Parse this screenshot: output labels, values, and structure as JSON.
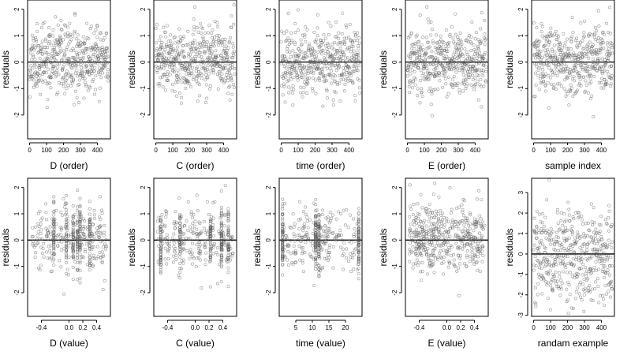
{
  "chart_data": [
    {
      "type": "scatter",
      "xlabel": "D (order)",
      "ylabel": "residuals",
      "x_range": [
        0,
        465
      ],
      "xlim": [
        -12,
        477
      ],
      "ylim": [
        -2.9,
        2.35
      ],
      "x_ticks": [
        0,
        100,
        200,
        300,
        400
      ],
      "x_tick_labels": [
        "0",
        "100",
        "200",
        "300",
        "400"
      ],
      "y_ticks": [
        -2,
        -1,
        0,
        1,
        2
      ],
      "y_tick_labels": [
        "-2",
        "-1",
        "0",
        "1",
        "2"
      ],
      "reference_line": 0,
      "n_points": 465,
      "mode": "order",
      "seed": 11,
      "grid": false
    },
    {
      "type": "scatter",
      "xlabel": "C (order)",
      "ylabel": "residuals",
      "x_range": [
        0,
        465
      ],
      "xlim": [
        -12,
        477
      ],
      "ylim": [
        -2.9,
        2.35
      ],
      "x_ticks": [
        0,
        100,
        200,
        300,
        400
      ],
      "x_tick_labels": [
        "0",
        "100",
        "200",
        "300",
        "400"
      ],
      "y_ticks": [
        -2,
        -1,
        0,
        1,
        2
      ],
      "y_tick_labels": [
        "-2",
        "-1",
        "0",
        "1",
        "2"
      ],
      "reference_line": 0,
      "n_points": 465,
      "mode": "order",
      "seed": 23,
      "grid": false
    },
    {
      "type": "scatter",
      "xlabel": "time (order)",
      "ylabel": "residuals",
      "x_range": [
        0,
        465
      ],
      "xlim": [
        -12,
        477
      ],
      "ylim": [
        -2.9,
        2.35
      ],
      "x_ticks": [
        0,
        100,
        200,
        300,
        400
      ],
      "x_tick_labels": [
        "0",
        "100",
        "200",
        "300",
        "400"
      ],
      "y_ticks": [
        -2,
        -1,
        0,
        1,
        2
      ],
      "y_tick_labels": [
        "-2",
        "-1",
        "0",
        "1",
        "2"
      ],
      "reference_line": 0,
      "n_points": 465,
      "mode": "order",
      "seed": 37,
      "grid": false
    },
    {
      "type": "scatter",
      "xlabel": "E (order)",
      "ylabel": "residuals",
      "x_range": [
        0,
        465
      ],
      "xlim": [
        -12,
        477
      ],
      "ylim": [
        -2.9,
        2.35
      ],
      "x_ticks": [
        0,
        100,
        200,
        300,
        400
      ],
      "x_tick_labels": [
        "0",
        "100",
        "200",
        "300",
        "400"
      ],
      "y_ticks": [
        -2,
        -1,
        0,
        1,
        2
      ],
      "y_tick_labels": [
        "-2",
        "-1",
        "0",
        "1",
        "2"
      ],
      "reference_line": 0,
      "n_points": 465,
      "mode": "order",
      "seed": 41,
      "grid": false
    },
    {
      "type": "scatter",
      "xlabel": "sample index",
      "ylabel": "residuals",
      "x_range": [
        0,
        465
      ],
      "xlim": [
        -12,
        477
      ],
      "ylim": [
        -2.9,
        2.35
      ],
      "x_ticks": [
        0,
        100,
        200,
        300,
        400
      ],
      "x_tick_labels": [
        "0",
        "100",
        "200",
        "300",
        "400"
      ],
      "y_ticks": [
        -2,
        -1,
        0,
        1,
        2
      ],
      "y_tick_labels": [
        "-2",
        "-1",
        "0",
        "1",
        "2"
      ],
      "reference_line": 0,
      "n_points": 465,
      "mode": "order",
      "seed": 53,
      "grid": false
    },
    {
      "type": "scatter",
      "xlabel": "D (value)",
      "ylabel": "residuals",
      "x_range": [
        -0.55,
        0.55
      ],
      "xlim": [
        -0.6,
        0.6
      ],
      "ylim": [
        -2.9,
        2.35
      ],
      "x_ticks": [
        -0.4,
        0,
        0.2,
        0.4
      ],
      "x_tick_labels": [
        "-0.4",
        "0.0",
        "0.2",
        "0.4"
      ],
      "y_ticks": [
        -2,
        -1,
        0,
        1,
        2
      ],
      "y_tick_labels": [
        "-2",
        "-1",
        "0",
        "1",
        "2"
      ],
      "reference_line": 0,
      "n_points": 465,
      "mode": "value",
      "clusters": [
        -0.22,
        -0.04,
        0.06,
        0.12,
        0.16,
        0.3
      ],
      "seed": 61,
      "grid": false
    },
    {
      "type": "scatter",
      "xlabel": "C (value)",
      "ylabel": "residuals",
      "x_range": [
        -0.55,
        0.55
      ],
      "xlim": [
        -0.6,
        0.6
      ],
      "ylim": [
        -2.9,
        2.35
      ],
      "x_ticks": [
        -0.4,
        0,
        0.2,
        0.4
      ],
      "x_tick_labels": [
        "-0.4",
        "0.0",
        "0.2",
        "0.4"
      ],
      "y_ticks": [
        -2,
        -1,
        0,
        1,
        2
      ],
      "y_tick_labels": [
        "-2",
        "-1",
        "0",
        "1",
        "2"
      ],
      "reference_line": 0,
      "n_points": 465,
      "mode": "value",
      "clusters": [
        -0.5,
        -0.22,
        0.22,
        0.38,
        0.48
      ],
      "seed": 71,
      "grid": false
    },
    {
      "type": "scatter",
      "xlabel": "time (value)",
      "ylabel": "residuals",
      "x_range": [
        1,
        24
      ],
      "xlim": [
        0,
        25
      ],
      "ylim": [
        -2.9,
        2.35
      ],
      "x_ticks": [
        5,
        10,
        15,
        20
      ],
      "x_tick_labels": [
        "5",
        "10",
        "15",
        "20"
      ],
      "y_ticks": [
        -2,
        -1,
        0,
        1,
        2
      ],
      "y_tick_labels": [
        "-2",
        "-1",
        "0",
        "1",
        "2"
      ],
      "reference_line": 0,
      "n_points": 465,
      "mode": "value",
      "clusters": [
        1,
        11,
        12,
        24
      ],
      "seed": 83,
      "grid": false
    },
    {
      "type": "scatter",
      "xlabel": "E (value)",
      "ylabel": "residuals",
      "x_range": [
        -0.55,
        0.55
      ],
      "xlim": [
        -0.6,
        0.6
      ],
      "ylim": [
        -2.9,
        2.35
      ],
      "x_ticks": [
        -0.4,
        0,
        0.2,
        0.4
      ],
      "x_tick_labels": [
        "-0.4",
        "0.0",
        "0.2",
        "0.4"
      ],
      "y_ticks": [
        -2,
        -1,
        0,
        1,
        2
      ],
      "y_tick_labels": [
        "-2",
        "-1",
        "0",
        "1",
        "2"
      ],
      "reference_line": 0,
      "n_points": 465,
      "mode": "value",
      "clusters": [],
      "seed": 97,
      "grid": false
    },
    {
      "type": "scatter",
      "xlabel": "randam example",
      "ylabel": "residuals",
      "x_range": [
        0,
        465
      ],
      "xlim": [
        -12,
        477
      ],
      "ylim": [
        -3.05,
        3.7
      ],
      "x_ticks": [
        0,
        100,
        200,
        300,
        400
      ],
      "x_tick_labels": [
        "0",
        "100",
        "200",
        "300",
        "400"
      ],
      "y_ticks": [
        -3,
        -2,
        -1,
        0,
        1,
        2,
        3
      ],
      "y_tick_labels": [
        "-3",
        "-2",
        "-1",
        "0",
        "1",
        "2",
        "3"
      ],
      "reference_line": 0,
      "n_points": 465,
      "mode": "random",
      "seed": 101,
      "grid": false
    }
  ]
}
